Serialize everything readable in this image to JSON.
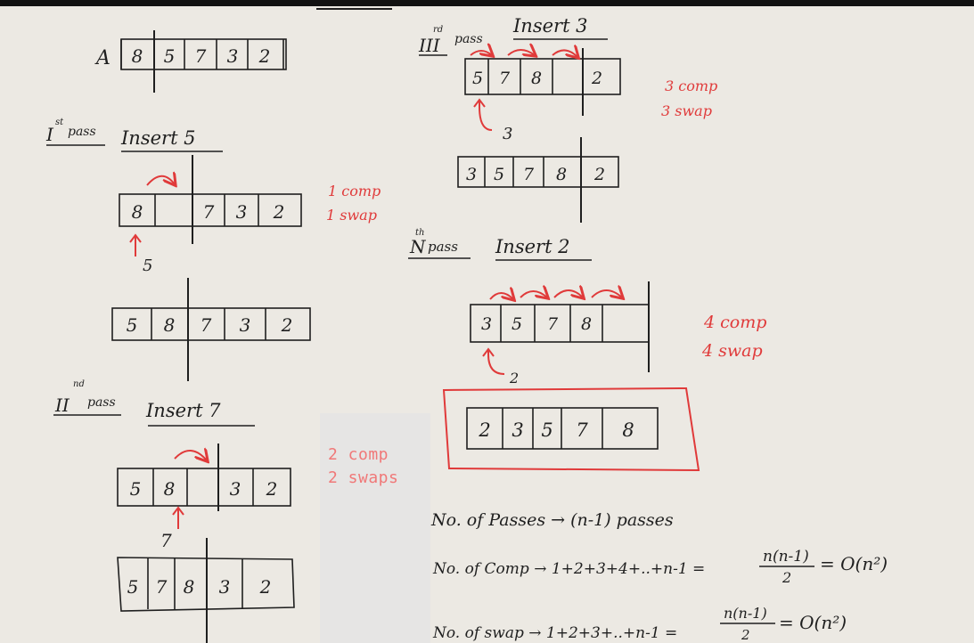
{
  "colors": {
    "board": "#ece9e3",
    "ink": "#1f1f1f",
    "red_ink": "#e03a3a",
    "note_bg": "#e6e5e4",
    "note_text": "#f07878"
  },
  "initial": {
    "label": "A",
    "cells": [
      "8",
      "5",
      "7",
      "3",
      "2"
    ]
  },
  "pass1": {
    "heading": "I",
    "sup": "st",
    "word": "pass",
    "title": "Insert 5",
    "before": [
      "8",
      "",
      "7",
      "3",
      "2"
    ],
    "arrow_label": "5",
    "after": [
      "5",
      "8",
      "7",
      "3",
      "2"
    ],
    "count1": "1 comp",
    "count2": "1 swap"
  },
  "pass2": {
    "heading": "II",
    "sup": "nd",
    "word": "pass",
    "title": "Insert 7",
    "before": [
      "5",
      "8",
      "",
      "3",
      "2"
    ],
    "arrow_label": "7",
    "after": [
      "5",
      "7",
      "8",
      "3",
      "2"
    ]
  },
  "note": {
    "line1": "2 comp",
    "line2": "2 swaps"
  },
  "pass3": {
    "heading": "III",
    "sup": "rd",
    "word": "pass",
    "title": "Insert 3",
    "before": [
      "5",
      "7",
      "8",
      "",
      "2"
    ],
    "arrow_label": "3",
    "after": [
      "3",
      "5",
      "7",
      "8",
      "2"
    ],
    "count1": "3 comp",
    "count2": "3 swap"
  },
  "pass4": {
    "heading": "N",
    "sup": "th",
    "word": "pass",
    "title": "Insert 2",
    "before": [
      "3",
      "5",
      "7",
      "8",
      ""
    ],
    "arrow_label": "2",
    "result": [
      "2",
      "3",
      "5",
      "7",
      "8"
    ],
    "count1": "4 comp",
    "count2": "4 swap"
  },
  "formulas": {
    "passes": "No. of Passes → (n-1) passes",
    "comp_prefix": "No. of Comp → 1+2+3+4+..+n-1 = ",
    "comp_frac_num": "n(n-1)",
    "comp_frac_den": "2",
    "comp_result": "= O(n²)",
    "swap_prefix": "No. of swap → 1+2+3+..+n-1 = ",
    "swap_frac_num": "n(n-1)",
    "swap_frac_den": "2",
    "swap_result": "= O(n²)"
  }
}
